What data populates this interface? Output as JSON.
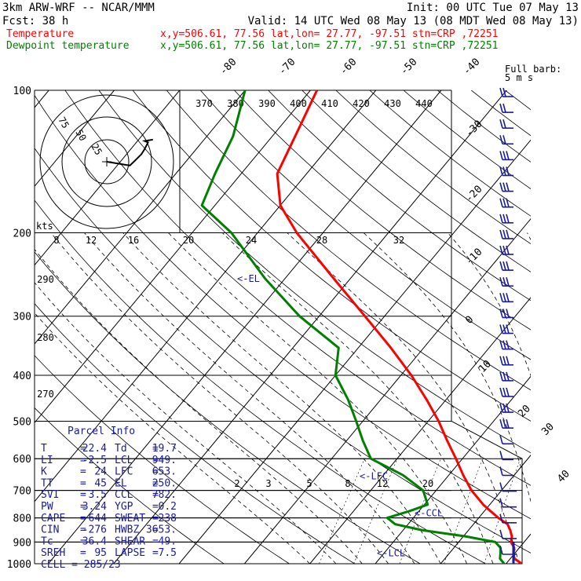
{
  "header": {
    "model": "3km ARW-WRF -- NCAR/MMM",
    "init": "Init: 00 UTC Tue 07 May 13",
    "fcst": "Fcst:   38 h",
    "valid": "Valid: 14 UTC Wed 08 May 13 (08 MDT Wed 08 May 13)",
    "temp_label": "Temperature",
    "dew_label": "Dewpoint temperature",
    "temp_loc": "x,y=506.61, 77.56   lat,lon= 27.77, -97.51   stn=CRP ,72251",
    "dew_loc": "x,y=506.61, 77.56   lat,lon= 27.77, -97.51   stn=CRP ,72251",
    "barb_title": "Full barb:",
    "barb_unit": "5 m s"
  },
  "colors": {
    "temperature": "#ff0000",
    "dewpoint": "#008000",
    "annotation": "#1a1aa0",
    "grid": "#000000"
  },
  "chart_data": {
    "type": "line",
    "title": "",
    "pressure_levels": [
      "100",
      "200",
      "300",
      "400",
      "500",
      "600",
      "700",
      "800",
      "900",
      "1000"
    ],
    "isotherm_labels": [
      "-80",
      "-70",
      "-60",
      "-50",
      "-40",
      "-30",
      "-20",
      "-10",
      "0",
      "10",
      "20",
      "30",
      "40"
    ],
    "theta_labels": [
      "370",
      "380",
      "390",
      "400",
      "410",
      "420",
      "430",
      "440"
    ],
    "theta_left_labels": [
      "290",
      "280",
      "270"
    ],
    "mixing_ratio_labels": [
      "2",
      "3",
      "5",
      "8",
      "12",
      "20"
    ],
    "hodo_labels": [
      "kts",
      "8",
      "12",
      "16",
      "20",
      "24",
      "28",
      "32"
    ],
    "hodo_ring_labels": [
      "75",
      "50",
      "25"
    ],
    "levels_annotations": [
      {
        "label": "<-EL",
        "p": 250
      },
      {
        "label": "<-LFC",
        "p": 653
      },
      {
        "label": "<-CCL",
        "p": 782
      },
      {
        "label": "<-LCL",
        "p": 949
      }
    ],
    "series": [
      {
        "name": "Temperature",
        "points": [
          [
            1000,
            22.4
          ],
          [
            975,
            20.6
          ],
          [
            950,
            19.8
          ],
          [
            925,
            19.2
          ],
          [
            900,
            18.0
          ],
          [
            875,
            17.4
          ],
          [
            850,
            16.4
          ],
          [
            825,
            15.2
          ],
          [
            800,
            13.0
          ],
          [
            775,
            11.0
          ],
          [
            750,
            9.0
          ],
          [
            700,
            5.4
          ],
          [
            650,
            2.2
          ],
          [
            600,
            -1.0
          ],
          [
            550,
            -4.6
          ],
          [
            500,
            -8.4
          ],
          [
            450,
            -13.0
          ],
          [
            400,
            -18.4
          ],
          [
            350,
            -25.0
          ],
          [
            300,
            -33.0
          ],
          [
            250,
            -42.5
          ],
          [
            200,
            -54.0
          ],
          [
            175,
            -60.0
          ],
          [
            150,
            -64.5
          ],
          [
            125,
            -66.5
          ],
          [
            100,
            -69.0
          ]
        ]
      },
      {
        "name": "Dewpoint temperature",
        "points": [
          [
            1000,
            19.7
          ],
          [
            975,
            18.4
          ],
          [
            950,
            17.8
          ],
          [
            925,
            17.1
          ],
          [
            900,
            15.6
          ],
          [
            875,
            10.2
          ],
          [
            850,
            3.0
          ],
          [
            825,
            -2.0
          ],
          [
            800,
            -4.0
          ],
          [
            775,
            -1.5
          ],
          [
            750,
            0.5
          ],
          [
            700,
            -2.0
          ],
          [
            650,
            -7.0
          ],
          [
            600,
            -14.0
          ],
          [
            550,
            -17.5
          ],
          [
            500,
            -21.0
          ],
          [
            450,
            -25.0
          ],
          [
            400,
            -30.0
          ],
          [
            350,
            -33.0
          ],
          [
            300,
            -43.0
          ],
          [
            250,
            -53.0
          ],
          [
            200,
            -64.0
          ],
          [
            175,
            -72.0
          ],
          [
            150,
            -74.0
          ],
          [
            125,
            -76.0
          ],
          [
            100,
            -80.0
          ]
        ]
      }
    ],
    "hodograph_path": [
      [
        0,
        0
      ],
      [
        -2,
        7
      ],
      [
        -4,
        14
      ],
      [
        1,
        17
      ],
      [
        8,
        21
      ],
      [
        16,
        23
      ],
      [
        22,
        24
      ],
      [
        28,
        25
      ],
      [
        32,
        23
      ],
      [
        36,
        28
      ]
    ],
    "wind_barbs_count": 30
  },
  "parcel_info": {
    "title": "Parcel Info",
    "rows": [
      {
        "k1": "T",
        "v1": "22.4",
        "k2": "Td",
        "v2": "19.7"
      },
      {
        "k1": "LI",
        "v1": "-2.5",
        "k2": "LCL",
        "v2": "949."
      },
      {
        "k1": "K",
        "v1": "24",
        "k2": "LFC",
        "v2": "653."
      },
      {
        "k1": "TT",
        "v1": "45",
        "k2": "EL",
        "v2": "250."
      },
      {
        "k1": "SVI",
        "v1": "3.5",
        "k2": "CCL",
        "v2": "782."
      },
      {
        "k1": "PW",
        "v1": "3.24",
        "k2": "YGP",
        "v2": "0.2"
      },
      {
        "k1": "CAPE",
        "v1": "644",
        "k2": "SWEAT",
        "v2": "238"
      },
      {
        "k1": "CIN",
        "v1": "-276",
        "k2": "HWBZ",
        "v2": "3653."
      },
      {
        "k1": "Tc",
        "v1": "36.4",
        "k2": "SHEAR",
        "v2": "49."
      },
      {
        "k1": "SREH",
        "v1": "95",
        "k2": "LAPSE",
        "v2": "7.5"
      }
    ],
    "cell": "CELL = 285/23"
  }
}
